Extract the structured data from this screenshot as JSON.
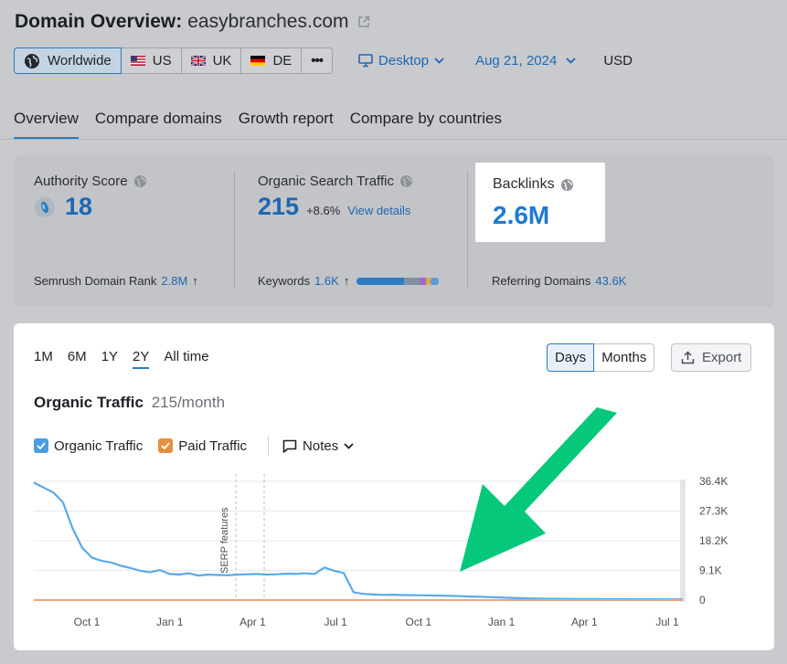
{
  "header": {
    "title": "Domain Overview:",
    "domain": "easybranches.com"
  },
  "region": {
    "worldwide": "Worldwide",
    "us": "US",
    "uk": "UK",
    "de": "DE",
    "more": "•••"
  },
  "filters": {
    "device": "Desktop",
    "date": "Aug 21, 2024",
    "currency": "USD"
  },
  "tabs": [
    "Overview",
    "Compare domains",
    "Growth report",
    "Compare by countries"
  ],
  "metrics": {
    "authority": {
      "label": "Authority Score",
      "value": "18",
      "foot_label": "Semrush Domain Rank",
      "foot_value": "2.8M",
      "foot_arrow": "↑"
    },
    "organic": {
      "label": "Organic Search Traffic",
      "value": "215",
      "change": "+8.6%",
      "link": "View details",
      "foot_label": "Keywords",
      "foot_value": "1.6K",
      "foot_arrow": "↑"
    },
    "backlinks": {
      "label": "Backlinks",
      "value": "2.6M",
      "foot_label": "Referring Domains",
      "foot_value": "43.6K"
    }
  },
  "periods": [
    "1M",
    "6M",
    "1Y",
    "2Y",
    "All time"
  ],
  "view_toggle": {
    "days": "Days",
    "months": "Months"
  },
  "export_label": "Export",
  "traffic": {
    "title": "Organic Traffic",
    "subtitle": "215/month"
  },
  "legend": {
    "organic": "Organic Traffic",
    "paid": "Paid Traffic",
    "notes": "Notes"
  },
  "colors": {
    "accent": "#2d7bc1",
    "organic_line": "#5aaae8",
    "paid_line": "#f5a37f",
    "arrow": "#05c87a",
    "organic_check": "#4a9de0",
    "paid_check": "#e58f3f"
  },
  "chart_data": {
    "type": "line",
    "annotation": "SERP features",
    "x_ticks": [
      "Oct 1",
      "Jan 1",
      "Apr 1",
      "Jul 1",
      "Oct 1",
      "Jan 1",
      "Apr 1",
      "Jul 1"
    ],
    "y_ticks": [
      "36.4K",
      "27.3K",
      "18.2K",
      "9.1K",
      "0"
    ],
    "ylim": [
      0,
      36400
    ],
    "series": [
      {
        "name": "Organic Traffic",
        "values": [
          36000,
          34500,
          33000,
          30000,
          22000,
          16000,
          13000,
          12000,
          11500,
          10500,
          9800,
          9000,
          8500,
          9200,
          8000,
          7800,
          8200,
          7500,
          7800,
          7700,
          7600,
          7800,
          7900,
          8000,
          7800,
          7900,
          8100,
          8000,
          8200,
          8000,
          10000,
          9000,
          8300,
          2400,
          1900,
          1700,
          1600,
          1650,
          1550,
          1500,
          1450,
          1400,
          1350,
          1300,
          1200,
          1100,
          1000,
          900,
          800,
          700,
          600,
          500,
          450,
          400,
          380,
          360,
          340,
          320,
          300,
          290,
          280,
          270,
          260,
          250,
          240,
          230,
          220,
          215
        ]
      },
      {
        "name": "Paid Traffic",
        "values": [
          0,
          0
        ]
      }
    ]
  }
}
